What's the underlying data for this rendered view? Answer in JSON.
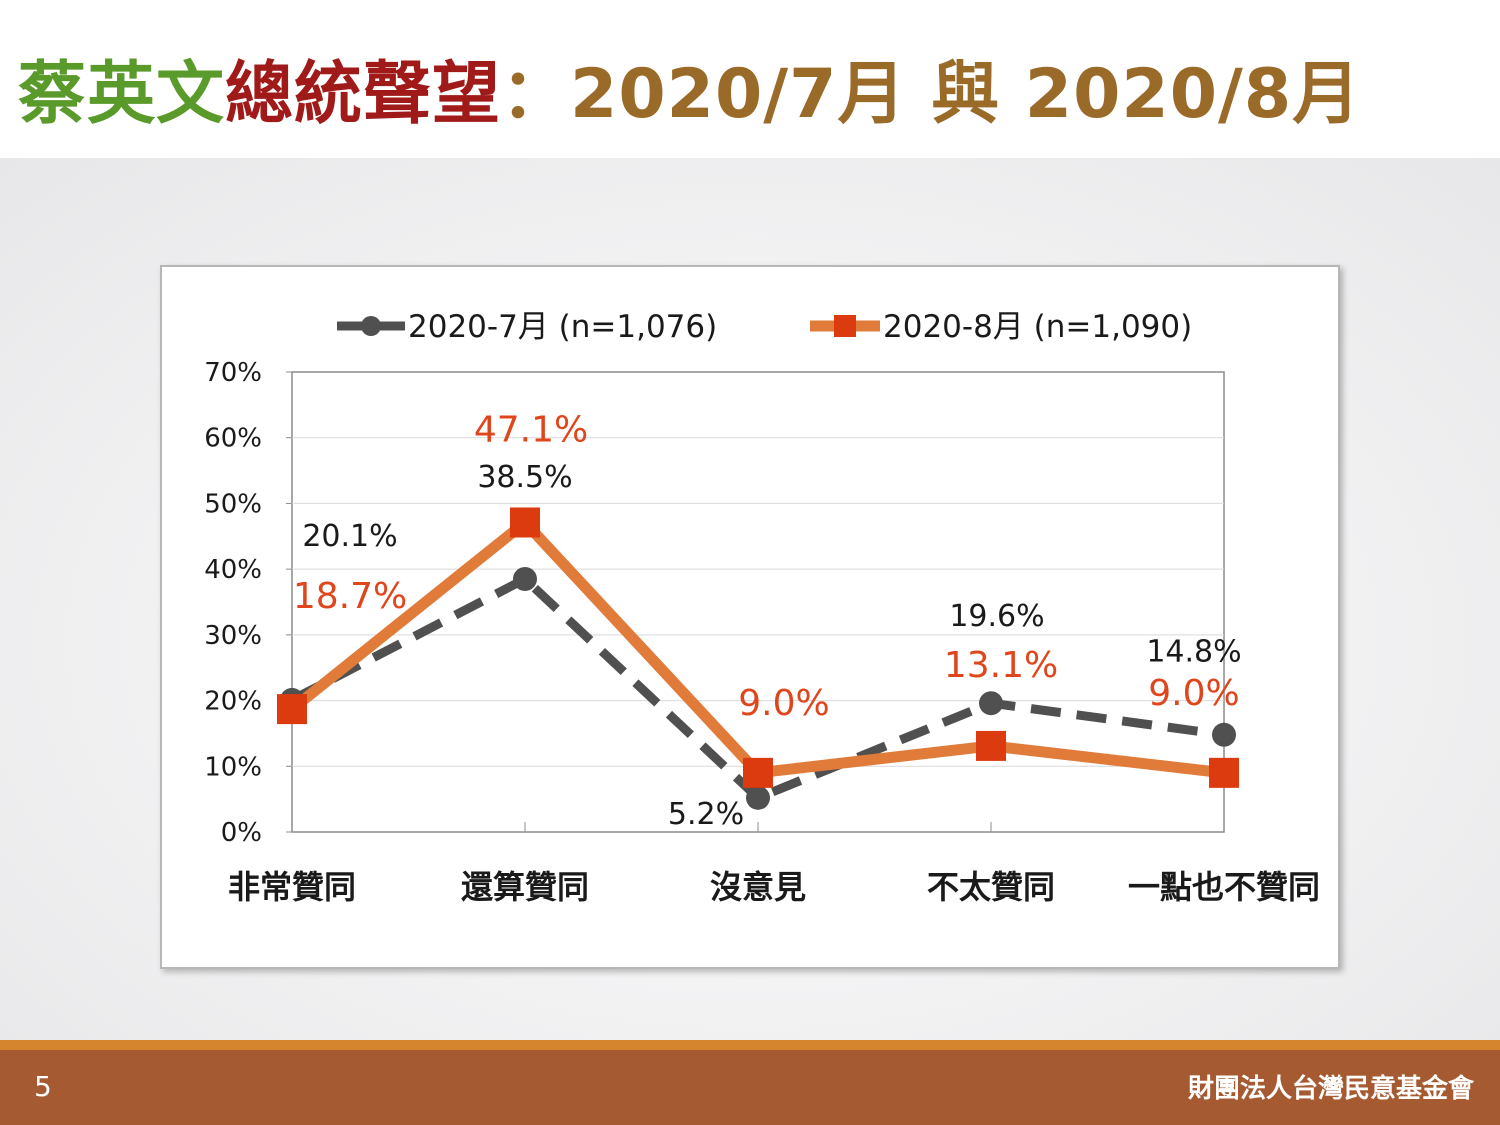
{
  "slide": {
    "title_part1": "蔡英文",
    "title_part2": "總統聲望",
    "title_part3": "：",
    "title_part4": "2020/7月 與 2020/8月",
    "page_number": "5",
    "organization": "財團法人台灣民意基金會",
    "colors": {
      "title_green": "#5a9a2a",
      "title_red": "#a01a1a",
      "title_gold": "#9a6a28",
      "footer": "#a55a32",
      "footer_line": "#d6852f"
    }
  },
  "chart_data": {
    "type": "line",
    "categories": [
      "非常贊同",
      "還算贊同",
      "沒意見",
      "不太贊同",
      "一點也不贊同"
    ],
    "ylim": [
      0,
      70
    ],
    "yticks": [
      0,
      10,
      20,
      30,
      40,
      50,
      60,
      70
    ],
    "ytick_labels": [
      "0%",
      "10%",
      "20%",
      "30%",
      "40%",
      "50%",
      "60%",
      "70%"
    ],
    "grid": true,
    "legend_position": "top",
    "series": [
      {
        "name": "2020-7月  (n=1,076)",
        "values": [
          20.1,
          38.5,
          5.2,
          19.6,
          14.8
        ],
        "labels": [
          "20.1%",
          "38.5%",
          "5.2%",
          "19.6%",
          "14.8%"
        ],
        "color": "#505050",
        "label_color": "#1a1a1a",
        "style": "dashed",
        "marker": "circle"
      },
      {
        "name": "2020-8月  (n=1,090)",
        "values": [
          18.7,
          47.1,
          9.0,
          13.1,
          9.0
        ],
        "labels": [
          "18.7%",
          "47.1%",
          "9.0%",
          "13.1%",
          "9.0%"
        ],
        "color": "#e07b39",
        "marker_color": "#dc3a0f",
        "label_color": "#e0461c",
        "style": "solid",
        "marker": "square"
      }
    ]
  }
}
